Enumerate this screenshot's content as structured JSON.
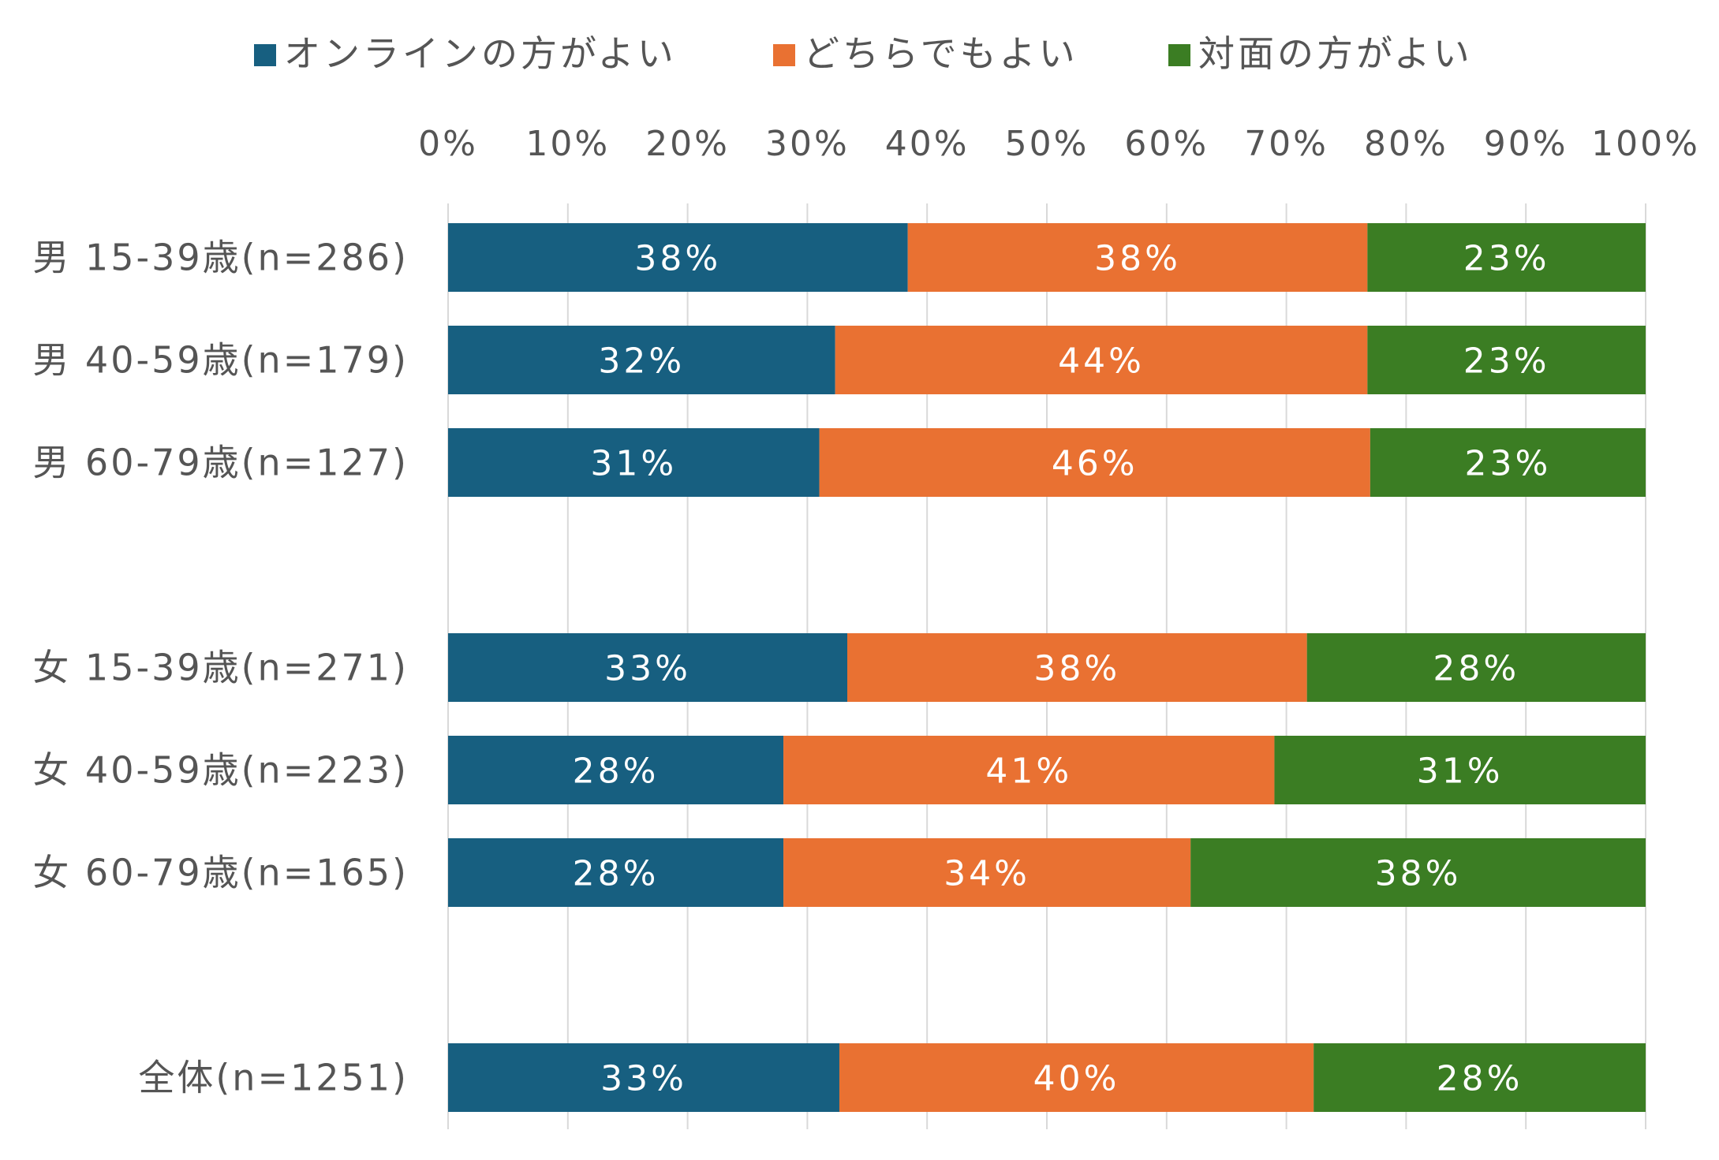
{
  "chart_data": {
    "type": "bar",
    "orientation": "horizontal",
    "stacked": "percent",
    "legend_position": "top",
    "grid": true,
    "xlim": [
      0,
      100
    ],
    "x_ticks": [
      "0%",
      "10%",
      "20%",
      "30%",
      "40%",
      "50%",
      "60%",
      "70%",
      "80%",
      "90%",
      "100%"
    ],
    "categories": [
      "男 15-39歳(n=286)",
      "男 40-59歳(n=179)",
      "男 60-79歳(n=127)",
      "",
      "女 15-39歳(n=271)",
      "女 40-59歳(n=223)",
      "女 60-79歳(n=165)",
      "",
      "全体(n=1251)"
    ],
    "series": [
      {
        "name": "オンラインの方がよい",
        "color": "#175f80",
        "values": [
          38,
          32,
          31,
          null,
          33,
          28,
          28,
          null,
          33
        ]
      },
      {
        "name": "どちらでもよい",
        "color": "#e97132",
        "values": [
          38,
          44,
          46,
          null,
          38,
          41,
          34,
          null,
          40
        ]
      },
      {
        "name": "対面の方がよい",
        "color": "#3b7d23",
        "values": [
          23,
          23,
          23,
          null,
          28,
          31,
          38,
          null,
          28
        ]
      }
    ],
    "data_labels": [
      [
        "38%",
        "32%",
        "31%",
        "",
        "33%",
        "28%",
        "28%",
        "",
        "33%"
      ],
      [
        "38%",
        "44%",
        "46%",
        "",
        "38%",
        "41%",
        "34%",
        "",
        "40%"
      ],
      [
        "23%",
        "23%",
        "23%",
        "",
        "28%",
        "31%",
        "38%",
        "",
        "28%"
      ]
    ]
  }
}
